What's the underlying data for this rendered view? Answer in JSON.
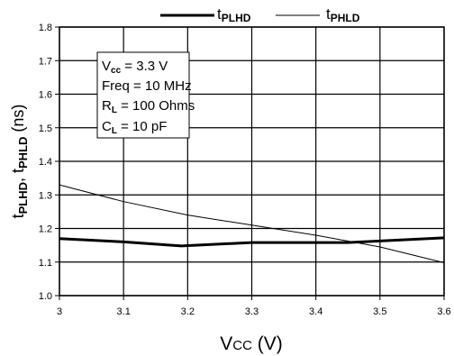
{
  "chart_data": {
    "type": "line",
    "legend": {
      "placement": "top",
      "entries": [
        {
          "main": "t",
          "sub": "PLHD",
          "color": "#000000",
          "weight": "thick"
        },
        {
          "main": "t",
          "sub": "PHLD",
          "color": "#000000",
          "weight": "thin"
        }
      ]
    },
    "xlabel": {
      "main": "V",
      "sub": "CC",
      "tail": " (V)"
    },
    "ylabel": {
      "p1": "t",
      "s1": "PLHD",
      "p2": ", t",
      "s2": "PHLD",
      "p3": " (ns)"
    },
    "xlim": [
      3,
      3.6
    ],
    "ylim": [
      1.0,
      1.8
    ],
    "x_ticks": [
      3,
      3.1,
      3.2,
      3.3,
      3.4,
      3.5,
      3.6
    ],
    "x_tick_labels": [
      "3",
      "3.1",
      "3.2",
      "3.3",
      "3.4",
      "3.5",
      "3.6"
    ],
    "y_ticks": [
      1.0,
      1.1,
      1.2,
      1.3,
      1.4,
      1.5,
      1.6,
      1.7,
      1.8
    ],
    "y_tick_labels": [
      "1.0",
      "1.1",
      "1.2",
      "1.3",
      "1.4",
      "1.5",
      "1.6",
      "1.7",
      "1.8"
    ],
    "grid": true,
    "series": [
      {
        "name": "tPLHD",
        "x": [
          3.0,
          3.1,
          3.19,
          3.3,
          3.45,
          3.6
        ],
        "y": [
          1.17,
          1.16,
          1.148,
          1.158,
          1.158,
          1.172
        ]
      },
      {
        "name": "tPHLD",
        "x": [
          3.0,
          3.1,
          3.2,
          3.3,
          3.4,
          3.5,
          3.6
        ],
        "y": [
          1.33,
          1.28,
          1.24,
          1.21,
          1.18,
          1.145,
          1.098
        ]
      }
    ],
    "annotation": {
      "lines": [
        {
          "main": "V",
          "sub": "cc",
          "rest": " = 3.3 V"
        },
        {
          "main": "Freq = 10 MHz",
          "sub": "",
          "rest": ""
        },
        {
          "main": "R",
          "sub": "L",
          "rest": " = 100 Ohms"
        },
        {
          "main": "C",
          "sub": "L",
          "rest": " = 10 pF"
        }
      ]
    }
  }
}
